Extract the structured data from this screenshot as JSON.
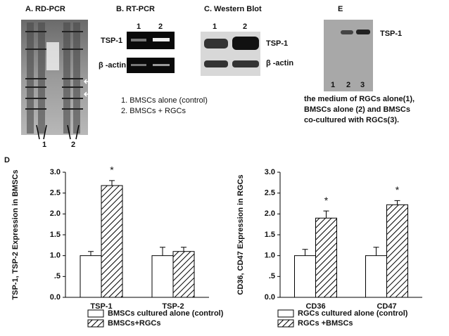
{
  "panels": {
    "a": {
      "label": "A. RD-PCR",
      "lanes": [
        "1",
        "2"
      ]
    },
    "b": {
      "label": "B. RT-PCR",
      "lanes": [
        "1",
        "2"
      ],
      "rows": [
        "TSP-1",
        "β -actin"
      ],
      "legend": [
        "1. BMSCs alone (control)",
        "2. BMSCs + RGCs"
      ]
    },
    "c": {
      "label": "C. Western Blot",
      "lanes": [
        "1",
        "2"
      ],
      "rows": [
        "TSP-1",
        "β -actin"
      ]
    },
    "e": {
      "label": "E",
      "band": "TSP-1",
      "lanes": [
        "1",
        "2",
        "3"
      ],
      "caption": [
        "the medium of RGCs alone(1),",
        "BMSCs alone (2) and  BMSCs",
        "co-cultured with RGCs(3)."
      ]
    },
    "d": {
      "label": "D"
    }
  },
  "chart_data": [
    {
      "type": "bar",
      "y_label": "TSP-1, TSP-2 Expression in BMSCs",
      "categories": [
        "TSP-1",
        "TSP-2"
      ],
      "series": [
        {
          "name": "BMSCs cultured alone (control)",
          "color": "#ffffff",
          "pattern": "none",
          "values": [
            1.0,
            1.0
          ],
          "errors": [
            0.1,
            0.2
          ],
          "markers": [
            null,
            null
          ]
        },
        {
          "name": "BMSCs+RGCs",
          "color": "#ffffff",
          "pattern": "hatch",
          "values": [
            2.68,
            1.1
          ],
          "errors": [
            0.12,
            0.1
          ],
          "markers": [
            "*",
            null
          ]
        }
      ],
      "ylim": [
        0,
        3
      ],
      "yticks": [
        {
          "value": 0,
          "label": "0.0"
        },
        {
          "value": 0.5,
          "label": ".5"
        },
        {
          "value": 1,
          "label": "1.0"
        },
        1.5,
        {
          "value": 2,
          "label": "2.0"
        },
        2.5,
        {
          "value": 3,
          "label": "3.0"
        }
      ]
    },
    {
      "type": "bar",
      "y_label": "CD36, CD47 Expression in RGCs",
      "categories": [
        "CD36",
        "CD47"
      ],
      "series": [
        {
          "name": "RGCs cultured alone (control)",
          "color": "#ffffff",
          "pattern": "none",
          "values": [
            1.0,
            1.0
          ],
          "errors": [
            0.15,
            0.2
          ],
          "markers": [
            null,
            null
          ]
        },
        {
          "name": "RGCs +BMSCs",
          "color": "#ffffff",
          "pattern": "hatch",
          "values": [
            1.9,
            2.22
          ],
          "errors": [
            0.17,
            0.1
          ],
          "markers": [
            "*",
            "*"
          ]
        }
      ],
      "ylim": [
        0,
        3
      ],
      "yticks": [
        {
          "value": 0,
          "label": "0.0"
        },
        {
          "value": 0.5,
          "label": ".5"
        },
        {
          "value": 1,
          "label": "1.0"
        },
        1.5,
        {
          "value": 2,
          "label": "2.0"
        },
        2.5,
        {
          "value": 3,
          "label": "3.0"
        }
      ]
    }
  ]
}
